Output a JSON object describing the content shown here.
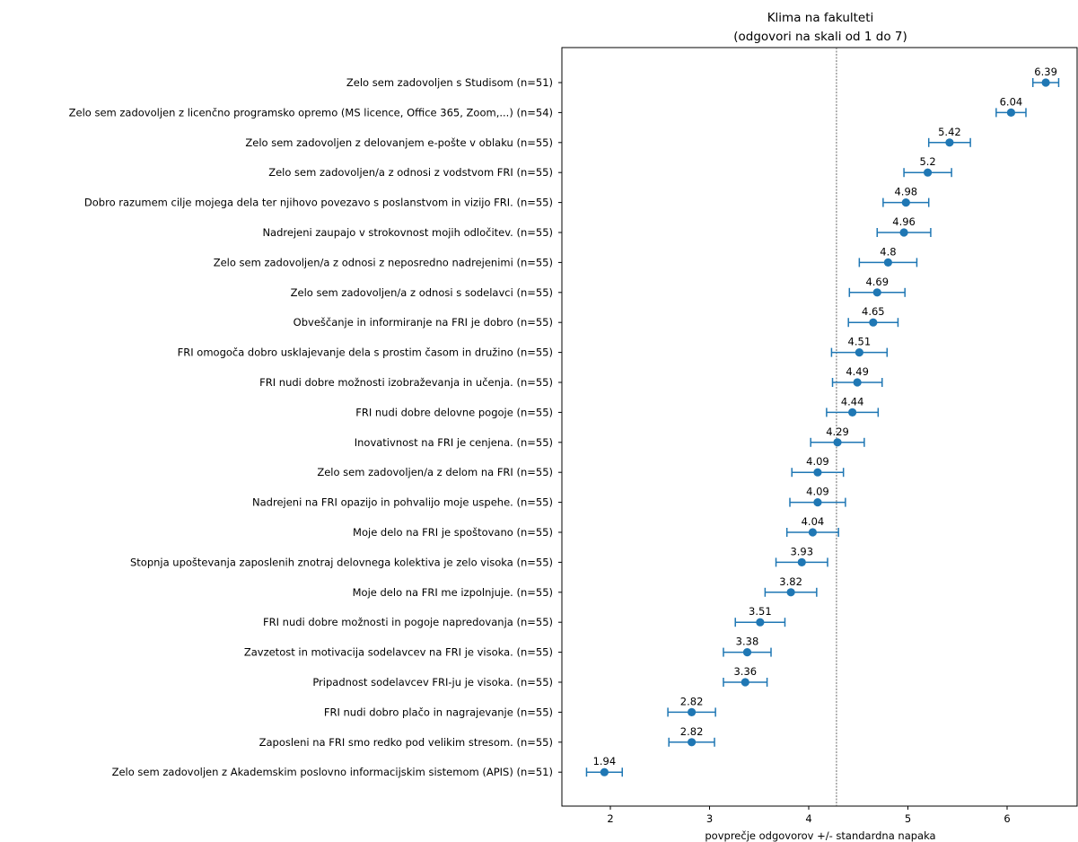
{
  "chart_data": {
    "type": "scatter",
    "title": "Klima na fakulteti",
    "subtitle": "(odgovori na skali od 1 do 7)",
    "xlabel": "povprečje odgovorov +/- standardna napaka",
    "ylabel": "",
    "xlim": [
      1.5,
      6.72
    ],
    "xticks": [
      2,
      3,
      4,
      5,
      6
    ],
    "reference_line_x": 4.28,
    "grid": false,
    "colors": {
      "marker": "#1f77b4",
      "reference_line": "#444444"
    },
    "categories": [
      "Zelo sem zadovoljen s Studisom (n=51)",
      "Zelo sem zadovoljen z licenčno programsko opremo (MS licence, Office 365, Zoom,...) (n=54)",
      "Zelo sem zadovoljen z delovanjem e-pošte v oblaku (n=55)",
      "Zelo sem zadovoljen/a z odnosi z vodstvom FRI (n=55)",
      "Dobro razumem cilje mojega dela ter njihovo povezavo s poslanstvom in vizijo FRI. (n=55)",
      "Nadrejeni zaupajo v strokovnost mojih odločitev. (n=55)",
      "Zelo sem zadovoljen/a z odnosi z neposredno nadrejenimi (n=55)",
      "Zelo sem zadovoljen/a z odnosi s sodelavci (n=55)",
      "Obveščanje in informiranje na FRI je dobro (n=55)",
      "FRI omogoča dobro usklajevanje dela s prostim časom in družino (n=55)",
      "FRI nudi dobre možnosti izobraževanja in učenja. (n=55)",
      "FRI nudi dobre delovne pogoje (n=55)",
      "Inovativnost na FRI je cenjena. (n=55)",
      "Zelo sem zadovoljen/a z delom na FRI (n=55)",
      "Nadrejeni na FRI opazijo in pohvalijo moje uspehe. (n=55)",
      "Moje delo na FRI je spoštovano (n=55)",
      "Stopnja upoštevanja zaposlenih znotraj delovnega kolektiva je zelo visoka (n=55)",
      "Moje delo na FRI me izpolnjuje. (n=55)",
      "FRI nudi dobre možnosti in pogoje napredovanja (n=55)",
      "Zavzetost in motivacija sodelavcev na FRI je visoka. (n=55)",
      "Pripadnost sodelavcev FRI-ju je visoka. (n=55)",
      "FRI nudi dobro plačo in nagrajevanje (n=55)",
      "Zaposleni na FRI smo redko pod velikim stresom. (n=55)",
      "Zelo sem zadovoljen z Akademskim poslovno informacijskim sistemom (APIS) (n=51)"
    ],
    "series": [
      {
        "values": [
          6.39,
          6.04,
          5.42,
          5.2,
          4.98,
          4.96,
          4.8,
          4.69,
          4.65,
          4.51,
          4.49,
          4.44,
          4.29,
          4.09,
          4.09,
          4.04,
          3.93,
          3.82,
          3.51,
          3.38,
          3.36,
          2.82,
          2.82,
          1.94
        ],
        "labels": [
          "6.39",
          "6.04",
          "5.42",
          "5.2",
          "4.98",
          "4.96",
          "4.8",
          "4.69",
          "4.65",
          "4.51",
          "4.49",
          "4.44",
          "4.29",
          "4.09",
          "4.09",
          "4.04",
          "3.93",
          "3.82",
          "3.51",
          "3.38",
          "3.36",
          "2.82",
          "2.82",
          "1.94"
        ],
        "error": [
          0.13,
          0.15,
          0.21,
          0.24,
          0.23,
          0.27,
          0.29,
          0.28,
          0.25,
          0.28,
          0.25,
          0.26,
          0.27,
          0.26,
          0.28,
          0.26,
          0.26,
          0.26,
          0.25,
          0.24,
          0.22,
          0.24,
          0.23,
          0.18
        ]
      }
    ]
  }
}
